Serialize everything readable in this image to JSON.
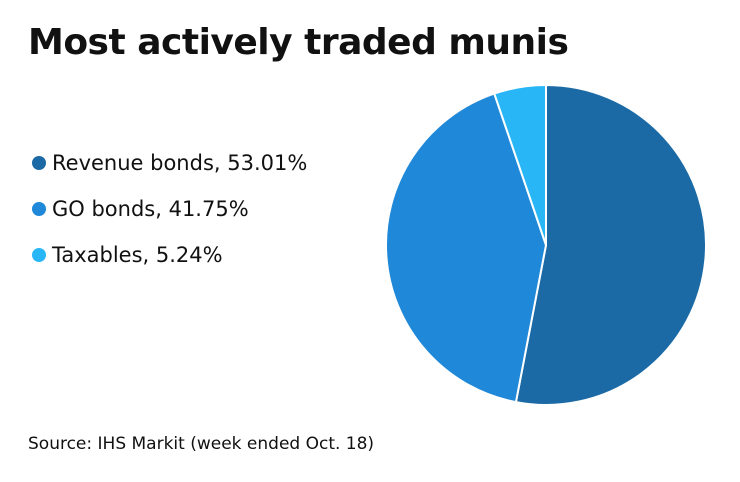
{
  "chart_data": {
    "type": "pie",
    "title": "Most actively traded munis",
    "source": "Source: IHS Markit (week ended Oct. 18)",
    "start_angle": "top, clockwise",
    "legend_placement": "left",
    "slices": [
      {
        "name": "Revenue bonds",
        "value": 53.01,
        "label": "Revenue bonds, 53.01%",
        "color": "#1b6aa5"
      },
      {
        "name": "GO bonds",
        "value": 41.75,
        "label": "GO bonds, 41.75%",
        "color": "#1f88d8"
      },
      {
        "name": "Taxables",
        "value": 5.24,
        "label": "Taxables, 5.24%",
        "color": "#29b6f6"
      }
    ]
  }
}
